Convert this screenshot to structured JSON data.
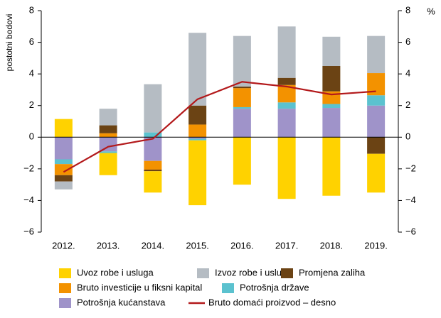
{
  "chart_data": {
    "type": "bar",
    "stacked": true,
    "y_label": "postotni bodovi",
    "y2_label": "%",
    "categories": [
      "2012.",
      "2013.",
      "2014.",
      "2015.",
      "2016.",
      "2017.",
      "2018.",
      "2019."
    ],
    "series": [
      {
        "name": "Uvoz robe i usluga",
        "color": "#ffd200",
        "values": [
          1.15,
          -1.4,
          -1.35,
          -4.1,
          -3.0,
          -3.9,
          -3.7,
          -2.45
        ]
      },
      {
        "name": "Izvoz robe i usluga",
        "color": "#b5bcc3",
        "values": [
          -0.5,
          1.05,
          3.05,
          4.6,
          3.2,
          3.25,
          1.85,
          2.35
        ]
      },
      {
        "name": "Promjena zaliha",
        "color": "#6b4314",
        "values": [
          -0.4,
          0.5,
          -0.1,
          1.2,
          0.1,
          0.45,
          1.6,
          -1.05
        ]
      },
      {
        "name": "Bruto investicije u fiksni kapital",
        "color": "#f39200",
        "values": [
          -0.7,
          0.25,
          -0.55,
          0.8,
          1.2,
          1.1,
          0.8,
          1.4
        ]
      },
      {
        "name": "Potrošnja države",
        "color": "#5bc2cf",
        "values": [
          -0.3,
          -0.1,
          0.3,
          -0.1,
          0.1,
          0.4,
          0.25,
          0.65
        ]
      },
      {
        "name": "Potrošnja kućanstava",
        "color": "#9f93c9",
        "values": [
          -1.4,
          -0.9,
          -1.5,
          -0.1,
          1.8,
          1.8,
          1.85,
          2.0
        ]
      },
      {
        "name": "Bruto domaći proizvod – desno",
        "color": "#b3191b",
        "type": "line",
        "axis": "y2",
        "values": [
          -2.2,
          -0.6,
          -0.1,
          2.4,
          3.5,
          3.2,
          2.7,
          2.9
        ]
      }
    ],
    "ylim": [
      -6,
      8
    ],
    "yticks": [
      {
        "value": -6,
        "label": "−6"
      },
      {
        "value": -4,
        "label": "−4"
      },
      {
        "value": -2,
        "label": "−2"
      },
      0,
      2,
      4,
      6,
      8
    ],
    "y2lim": [
      -6,
      8
    ],
    "y2ticks": [
      {
        "value": -6,
        "label": "−6"
      },
      {
        "value": -4,
        "label": "−4"
      },
      {
        "value": -2,
        "label": "−2"
      },
      0,
      2,
      4,
      6,
      8
    ]
  }
}
